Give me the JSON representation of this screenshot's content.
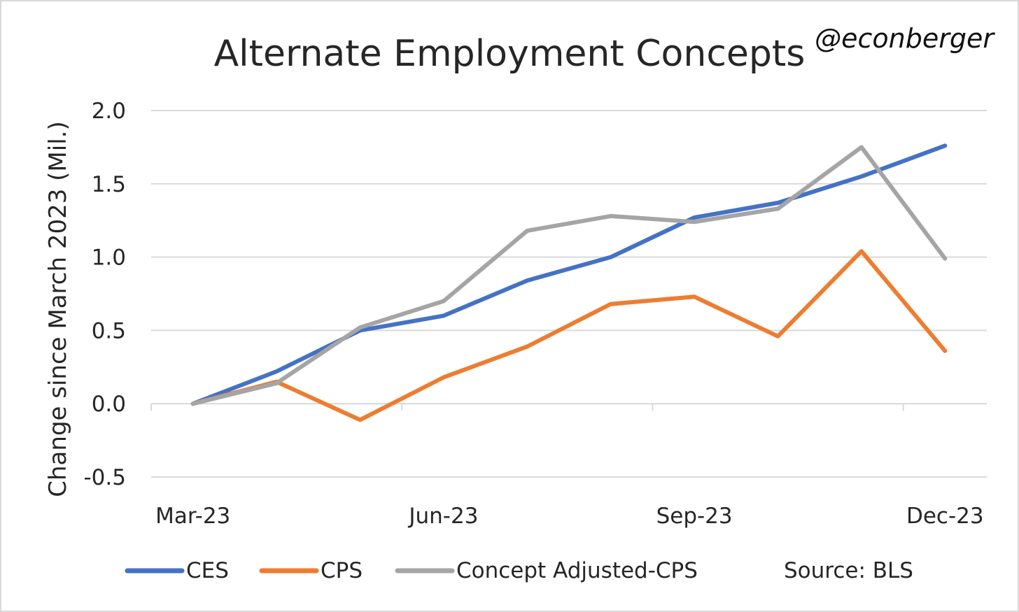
{
  "chart_data": {
    "type": "line",
    "title": "Alternate Employment Concepts",
    "annotation": "@econberger",
    "source": "Source: BLS",
    "ylabel": "Change since March 2023 (Mil.)",
    "xlabel": "",
    "ylim": [
      -0.5,
      2.0
    ],
    "yticks": [
      "2.0",
      "1.5",
      "1.0",
      "0.5",
      "0.0",
      "-0.5"
    ],
    "ytick_values": [
      2.0,
      1.5,
      1.0,
      0.5,
      0.0,
      -0.5
    ],
    "x": [
      "Mar-23",
      "Apr-23",
      "May-23",
      "Jun-23",
      "Jul-23",
      "Aug-23",
      "Sep-23",
      "Oct-23",
      "Nov-23",
      "Dec-23"
    ],
    "xtick_labels": [
      "Mar-23",
      "Jun-23",
      "Sep-23",
      "Dec-23"
    ],
    "legend_position": "bottom",
    "grid": true,
    "series": [
      {
        "name": "CES",
        "color": "#4472C4",
        "values": [
          0.0,
          0.22,
          0.5,
          0.6,
          0.84,
          1.0,
          1.27,
          1.37,
          1.55,
          1.76
        ]
      },
      {
        "name": "CPS",
        "color": "#ED7D31",
        "values": [
          0.0,
          0.15,
          -0.11,
          0.18,
          0.39,
          0.68,
          0.73,
          0.46,
          1.04,
          0.36
        ]
      },
      {
        "name": "Concept Adjusted-CPS",
        "color": "#A5A5A5",
        "values": [
          0.0,
          0.14,
          0.52,
          0.7,
          1.18,
          1.28,
          1.24,
          1.33,
          1.75,
          0.99
        ]
      }
    ]
  }
}
